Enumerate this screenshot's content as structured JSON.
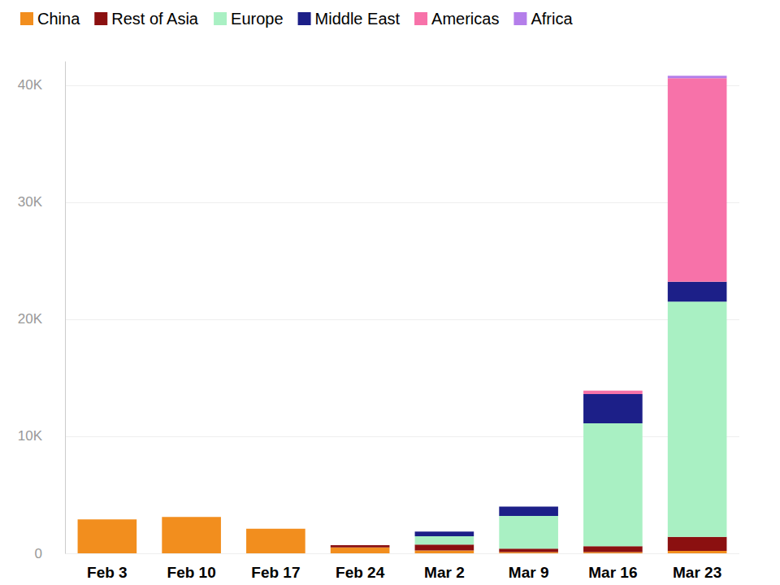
{
  "chart_data": {
    "type": "bar",
    "stacked": true,
    "grid": true,
    "legend": "top",
    "categories": [
      "Feb 3",
      "Feb 10",
      "Feb 17",
      "Feb 24",
      "Mar 2",
      "Mar 9",
      "Mar 16",
      "Mar 23"
    ],
    "series": [
      {
        "name": "China",
        "color": "#f28e1e",
        "values": [
          2900,
          3100,
          2100,
          500,
          250,
          100,
          100,
          200
        ]
      },
      {
        "name": "Rest of Asia",
        "color": "#8b1010",
        "values": [
          0,
          0,
          0,
          200,
          500,
          300,
          500,
          1200
        ]
      },
      {
        "name": "Europe",
        "color": "#a9f0c3",
        "values": [
          0,
          0,
          0,
          0,
          700,
          2800,
          10500,
          20100
        ]
      },
      {
        "name": "Middle East",
        "color": "#1c1f88",
        "values": [
          0,
          0,
          0,
          0,
          400,
          800,
          2500,
          1700
        ]
      },
      {
        "name": "Americas",
        "color": "#f772a9",
        "values": [
          0,
          0,
          0,
          0,
          0,
          0,
          300,
          17400
        ]
      },
      {
        "name": "Africa",
        "color": "#b47eea",
        "values": [
          0,
          0,
          0,
          0,
          0,
          0,
          0,
          200
        ]
      }
    ],
    "ylim": [
      0,
      42000
    ],
    "yticks": [
      0,
      {
        "value": 10000,
        "label": "10K"
      },
      {
        "value": 20000,
        "label": "20K"
      },
      {
        "value": 30000,
        "label": "30K"
      },
      {
        "value": 40000,
        "label": "40K"
      }
    ]
  }
}
